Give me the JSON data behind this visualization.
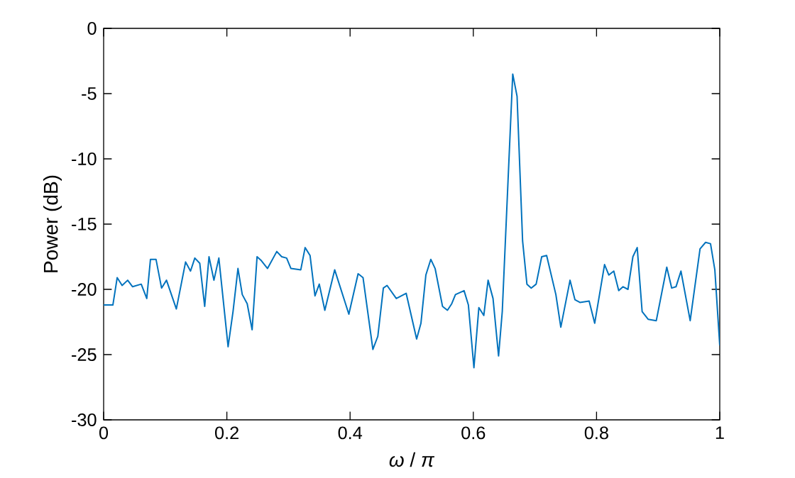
{
  "chart_data": {
    "type": "line",
    "xlabel": "*ω* / *π*",
    "ylabel": "Power (dB)",
    "xlim": [
      0,
      1
    ],
    "ylim": [
      -30,
      0
    ],
    "xticks": [
      0,
      0.2,
      0.4,
      0.6,
      0.8,
      1
    ],
    "yticks": [
      -30,
      -25,
      -20,
      -15,
      -10,
      -5,
      0
    ],
    "grid": false,
    "series": [
      {
        "color": "#0072bd",
        "x": [
          0,
          0.015,
          0.022,
          0.03,
          0.039,
          0.047,
          0.061,
          0.07,
          0.076,
          0.085,
          0.094,
          0.102,
          0.118,
          0.133,
          0.141,
          0.148,
          0.156,
          0.164,
          0.171,
          0.179,
          0.187,
          0.202,
          0.21,
          0.218,
          0.225,
          0.233,
          0.241,
          0.249,
          0.256,
          0.266,
          0.281,
          0.289,
          0.297,
          0.304,
          0.32,
          0.327,
          0.335,
          0.343,
          0.35,
          0.359,
          0.375,
          0.398,
          0.413,
          0.421,
          0.437,
          0.445,
          0.454,
          0.46,
          0.475,
          0.491,
          0.508,
          0.515,
          0.523,
          0.531,
          0.538,
          0.55,
          0.558,
          0.565,
          0.571,
          0.585,
          0.592,
          0.601,
          0.609,
          0.617,
          0.624,
          0.632,
          0.641,
          0.647,
          0.664,
          0.671,
          0.68,
          0.687,
          0.694,
          0.702,
          0.711,
          0.719,
          0.734,
          0.742,
          0.757,
          0.765,
          0.773,
          0.788,
          0.797,
          0.813,
          0.82,
          0.828,
          0.836,
          0.843,
          0.851,
          0.859,
          0.866,
          0.874,
          0.884,
          0.897,
          0.914,
          0.922,
          0.929,
          0.937,
          0.952,
          0.968,
          0.977,
          0.985,
          0.992,
          1
        ],
        "values": [
          -21.2,
          -21.2,
          -19.1,
          -19.7,
          -19.3,
          -19.8,
          -19.6,
          -20.7,
          -17.7,
          -17.7,
          -19.9,
          -19.3,
          -21.5,
          -17.9,
          -18.6,
          -17.6,
          -18.0,
          -21.3,
          -17.5,
          -19.3,
          -17.6,
          -24.4,
          -21.7,
          -18.4,
          -20.4,
          -21.1,
          -23.1,
          -17.5,
          -17.8,
          -18.4,
          -17.1,
          -17.5,
          -17.6,
          -18.4,
          -18.5,
          -16.8,
          -17.4,
          -20.5,
          -19.6,
          -21.6,
          -18.5,
          -21.9,
          -18.8,
          -19.1,
          -24.6,
          -23.6,
          -19.9,
          -19.7,
          -20.7,
          -20.3,
          -23.8,
          -22.6,
          -18.9,
          -17.7,
          -18.4,
          -21.3,
          -21.6,
          -21.1,
          -20.4,
          -20.1,
          -21.2,
          -26.0,
          -21.4,
          -22.0,
          -19.3,
          -20.7,
          -25.1,
          -21.7,
          -3.5,
          -5.2,
          -16.3,
          -19.6,
          -19.9,
          -19.6,
          -17.5,
          -17.4,
          -20.4,
          -22.9,
          -19.3,
          -20.8,
          -21.0,
          -20.9,
          -22.6,
          -18.1,
          -18.9,
          -18.6,
          -20.1,
          -19.8,
          -20.0,
          -17.5,
          -16.8,
          -21.7,
          -22.3,
          -22.4,
          -18.3,
          -19.9,
          -19.8,
          -18.6,
          -22.4,
          -16.9,
          -16.4,
          -16.5,
          -18.5,
          -24.3
        ]
      }
    ]
  }
}
